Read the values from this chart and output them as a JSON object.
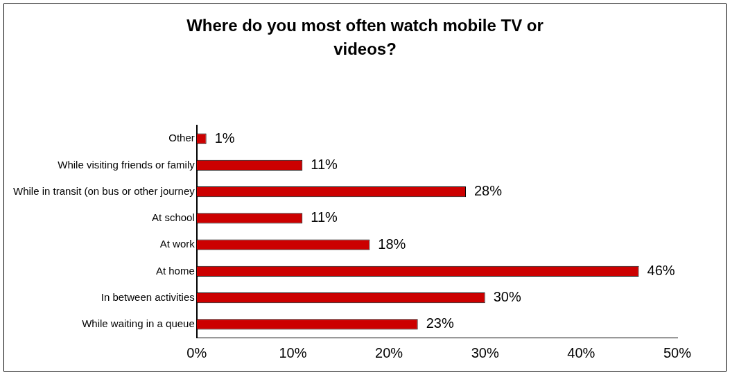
{
  "chart_data": {
    "type": "bar",
    "orientation": "horizontal",
    "title": "Where do you most often watch mobile TV or videos?",
    "categories": [
      "Other",
      "While visiting friends or family",
      "While in transit (on bus or other journey",
      "At school",
      "At work",
      "At home",
      "In between activities",
      "While waiting in a queue"
    ],
    "values": [
      1,
      11,
      28,
      11,
      18,
      46,
      30,
      23
    ],
    "value_labels": [
      "1%",
      "11%",
      "28%",
      "11%",
      "18%",
      "46%",
      "30%",
      "23%"
    ],
    "color": "#cc0000",
    "xlim": [
      0,
      50
    ],
    "xticks": [
      {
        "value": 0,
        "label": "0%"
      },
      {
        "value": 10,
        "label": "10%"
      },
      {
        "value": 20,
        "label": "20%"
      },
      {
        "value": 30,
        "label": "30%"
      },
      {
        "value": 40,
        "label": "40%"
      },
      {
        "value": 50,
        "label": "50%"
      }
    ],
    "grid": false,
    "legend": false
  }
}
